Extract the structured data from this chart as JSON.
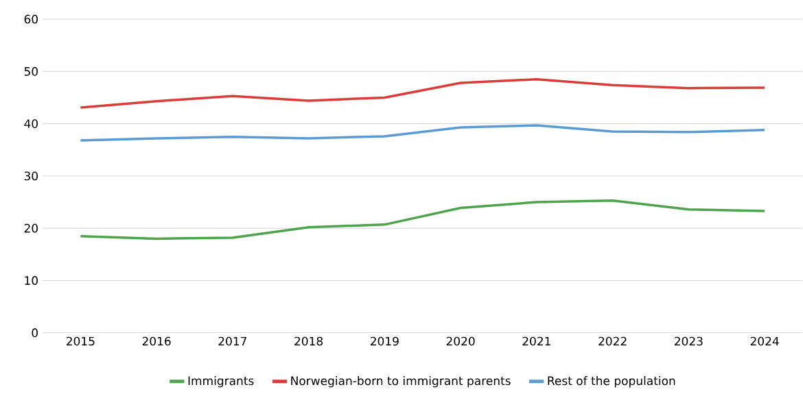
{
  "chart_data": {
    "type": "line",
    "categories": [
      "2015",
      "2016",
      "2017",
      "2018",
      "2019",
      "2020",
      "2021",
      "2022",
      "2023",
      "2024"
    ],
    "series": [
      {
        "name": "Immigrants",
        "color": "#4ea44b",
        "values": [
          18.5,
          18.0,
          18.2,
          20.2,
          20.7,
          23.9,
          25.0,
          25.3,
          23.6,
          23.3
        ]
      },
      {
        "name": "Norwegian-born to immigrant parents",
        "color": "#dc3c38",
        "values": [
          43.1,
          44.3,
          45.3,
          44.4,
          45.0,
          47.8,
          48.5,
          47.4,
          46.8,
          46.9
        ]
      },
      {
        "name": "Rest of the population",
        "color": "#5b9bd5",
        "values": [
          36.8,
          37.2,
          37.5,
          37.2,
          37.6,
          39.3,
          39.7,
          38.5,
          38.4,
          38.8
        ]
      }
    ],
    "ylim": [
      0,
      60
    ],
    "yticks": [
      0,
      10,
      20,
      30,
      40,
      50,
      60
    ],
    "grid": "y",
    "legend": "bottom",
    "marker": "none",
    "line_style": "solid"
  }
}
